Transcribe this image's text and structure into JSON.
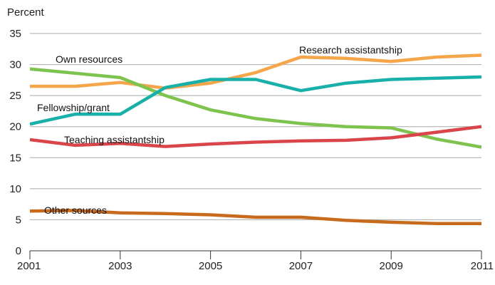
{
  "chart_data": {
    "type": "line",
    "ylabel": "Percent",
    "xlabel": "",
    "title": "",
    "ylim": [
      0,
      35
    ],
    "xlim": [
      2001,
      2011
    ],
    "yticks": [
      0,
      5,
      10,
      15,
      20,
      25,
      30,
      35
    ],
    "xticks": [
      2001,
      2003,
      2005,
      2007,
      2009,
      2011
    ],
    "grid": true,
    "x": [
      2001,
      2002,
      2003,
      2004,
      2005,
      2006,
      2007,
      2008,
      2009,
      2010,
      2011
    ],
    "series": [
      {
        "name": "Research assistantship",
        "color": "#f5a54a",
        "values": [
          26.5,
          26.5,
          27.1,
          26.2,
          27.0,
          28.7,
          31.2,
          31.0,
          30.5,
          31.2,
          31.5
        ]
      },
      {
        "name": "Own resources",
        "color": "#7fc34f",
        "values": [
          29.3,
          28.6,
          27.9,
          25.0,
          22.7,
          21.3,
          20.5,
          20.0,
          19.8,
          18.0,
          16.7
        ]
      },
      {
        "name": "Fellowship/grant",
        "color": "#18b0a8",
        "values": [
          20.4,
          22.0,
          22.0,
          26.3,
          27.6,
          27.6,
          25.8,
          27.0,
          27.6,
          27.8,
          28.0
        ]
      },
      {
        "name": "Teaching assistantship",
        "color": "#d9454a",
        "values": [
          17.9,
          17.0,
          17.3,
          16.8,
          17.2,
          17.5,
          17.7,
          17.8,
          18.2,
          19.1,
          20.0
        ]
      },
      {
        "name": "Other sources",
        "color": "#c76a1c",
        "values": [
          6.4,
          6.5,
          6.1,
          6.0,
          5.8,
          5.4,
          5.4,
          4.9,
          4.6,
          4.4,
          4.4
        ]
      }
    ]
  }
}
